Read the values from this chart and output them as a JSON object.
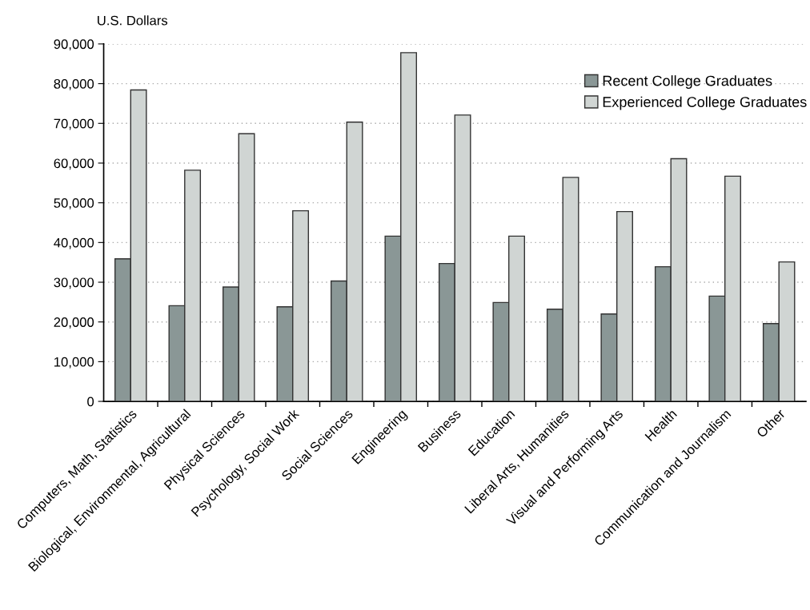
{
  "chart_data": {
    "type": "bar",
    "ylabel": "U.S. Dollars",
    "categories": [
      "Computers, Math, Statistics",
      "Biological, Environmental, Agricultural",
      "Physical Sciences",
      "Psychology, Social Work",
      "Social Sciences",
      "Engineering",
      "Business",
      "Education",
      "Liberal Arts, Humanities",
      "Visual and Performing Arts",
      "Health",
      "Communication and Journalism",
      "Other"
    ],
    "series": [
      {
        "name": "Recent College Graduates",
        "color": "#8a9796",
        "values": [
          35900,
          24100,
          28800,
          23800,
          30300,
          41600,
          34700,
          24900,
          23200,
          22000,
          33900,
          26500,
          19600
        ]
      },
      {
        "name": "Experienced College Graduates",
        "color": "#d0d5d3",
        "values": [
          78400,
          58200,
          67400,
          48000,
          70300,
          87800,
          72100,
          41600,
          56400,
          47800,
          61100,
          56700,
          35100
        ]
      }
    ],
    "ylim": [
      0,
      90000
    ],
    "yticks": [
      0,
      {
        "value": 10000,
        "label": "10,000"
      },
      {
        "value": 20000,
        "label": "20,000"
      },
      {
        "value": 30000,
        "label": "30,000"
      },
      {
        "value": 40000,
        "label": "40,000"
      },
      {
        "value": 50000,
        "label": "50,000"
      },
      {
        "value": 60000,
        "label": "60,000"
      },
      {
        "value": 70000,
        "label": "70,000"
      },
      {
        "value": 80000,
        "label": "80,000"
      },
      {
        "value": 90000,
        "label": "90,000"
      }
    ],
    "grid": "y",
    "legend": "top right"
  }
}
